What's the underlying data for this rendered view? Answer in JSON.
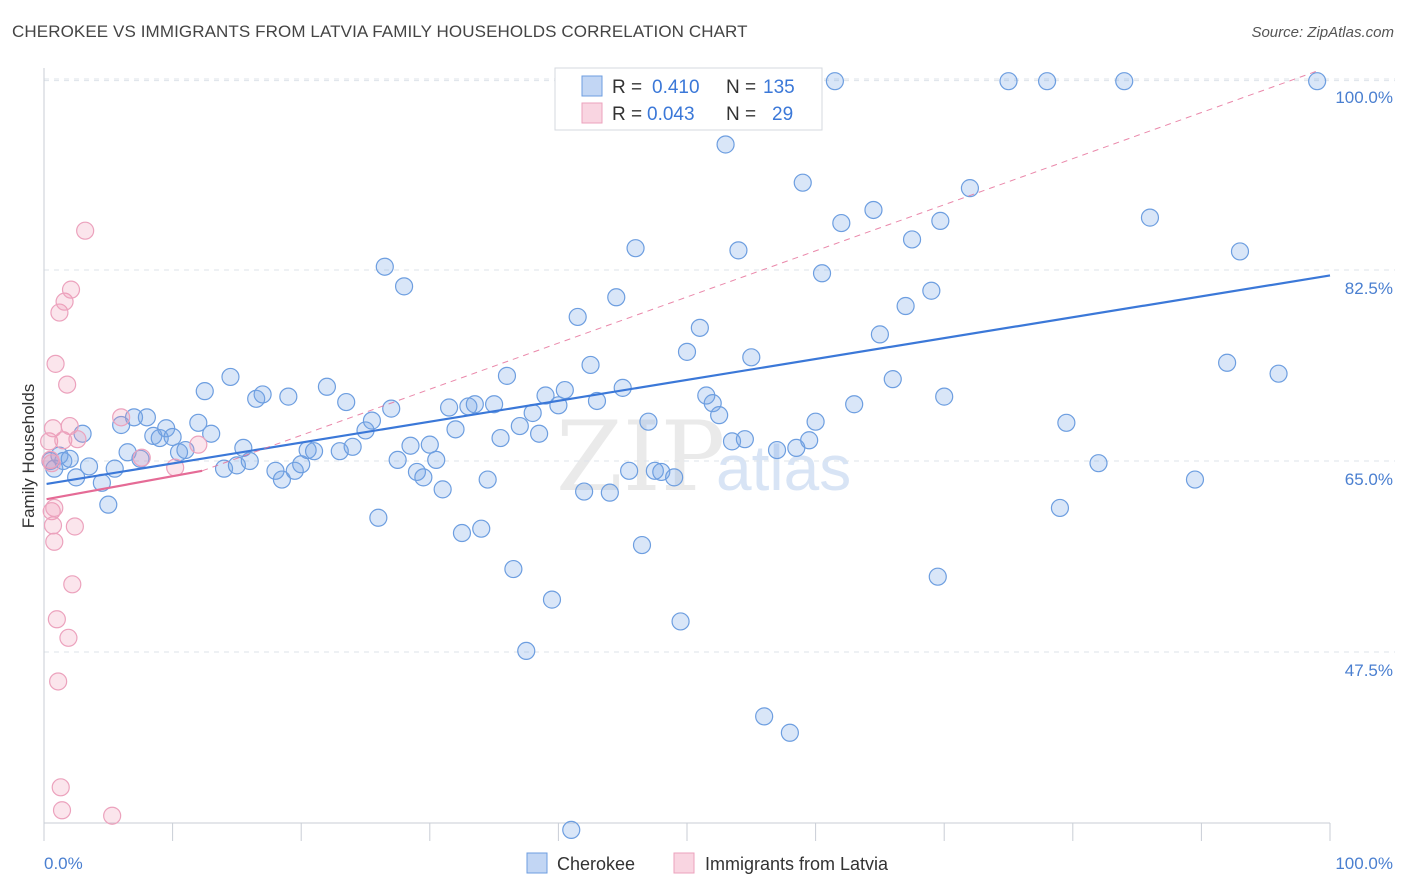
{
  "title": "CHEROKEE VS IMMIGRANTS FROM LATVIA FAMILY HOUSEHOLDS CORRELATION CHART",
  "source": "Source: ZipAtlas.com",
  "watermark": {
    "part1": "ZIP",
    "part2": "atlas"
  },
  "colors": {
    "blue": "#3b78d8",
    "blue_fill": "rgba(120,165,230,0.28)",
    "blue_stroke": "#6d9ee0",
    "pink": "#e56b96",
    "pink_fill": "rgba(240,150,180,0.25)",
    "pink_stroke": "#eca2bd",
    "grid": "#dde3ea",
    "axis_label": "#4a7fd0"
  },
  "legend": {
    "rows": [
      {
        "r_label": "R =",
        "r_value": "0.410",
        "n_label": "N =",
        "n_value": "135"
      },
      {
        "r_label": "R =",
        "r_value": "0.043",
        "n_label": "N =",
        "n_value": "29"
      }
    ]
  },
  "chart_data": {
    "type": "scatter",
    "title": "CHEROKEE VS IMMIGRANTS FROM LATVIA FAMILY HOUSEHOLDS CORRELATION CHART",
    "xlabel": "",
    "ylabel": "Family Households",
    "xlim": [
      0,
      100
    ],
    "ylim": [
      30,
      101.5
    ],
    "x_tick_labels": [
      "0.0%",
      "100.0%"
    ],
    "y_ticks": [
      47.5,
      65.0,
      82.5,
      100.0
    ],
    "y_tick_labels": [
      "47.5%",
      "65.0%",
      "82.5%",
      "100.0%"
    ],
    "series": [
      {
        "name": "Cherokee",
        "color": "#3b78d8",
        "trend": {
          "x0": 0.2,
          "y0": 62.9,
          "x1": 100,
          "y1": 82.0
        },
        "points": [
          [
            0.5,
            65
          ],
          [
            0.8,
            64.3
          ],
          [
            1.2,
            65.5
          ],
          [
            1.5,
            65
          ],
          [
            2,
            65.2
          ],
          [
            2.5,
            63.5
          ],
          [
            3,
            67.5
          ],
          [
            3.5,
            64.5
          ],
          [
            4.5,
            63
          ],
          [
            5,
            61
          ],
          [
            5.5,
            64.3
          ],
          [
            6,
            68.3
          ],
          [
            6.5,
            65.8
          ],
          [
            7,
            69
          ],
          [
            7.5,
            65.2
          ],
          [
            8,
            69
          ],
          [
            8.5,
            67.3
          ],
          [
            9,
            67.1
          ],
          [
            9.5,
            68
          ],
          [
            10,
            67.2
          ],
          [
            10.5,
            65.8
          ],
          [
            11,
            66
          ],
          [
            12,
            68.5
          ],
          [
            12.5,
            71.4
          ],
          [
            13,
            67.5
          ],
          [
            14,
            64.3
          ],
          [
            14.5,
            72.7
          ],
          [
            15,
            64.6
          ],
          [
            15.5,
            66.2
          ],
          [
            16,
            65
          ],
          [
            16.5,
            70.7
          ],
          [
            17,
            71.1
          ],
          [
            18,
            64.1
          ],
          [
            18.5,
            63.3
          ],
          [
            19,
            70.9
          ],
          [
            19.5,
            64.1
          ],
          [
            20,
            64.7
          ],
          [
            20.5,
            66
          ],
          [
            21,
            65.9
          ],
          [
            22,
            71.8
          ],
          [
            23,
            65.9
          ],
          [
            23.5,
            70.4
          ],
          [
            24,
            66.3
          ],
          [
            25,
            67.8
          ],
          [
            25.5,
            68.7
          ],
          [
            26,
            59.8
          ],
          [
            26.5,
            82.8
          ],
          [
            27,
            69.8
          ],
          [
            27.5,
            65.1
          ],
          [
            28,
            81
          ],
          [
            28.5,
            66.4
          ],
          [
            29,
            64
          ],
          [
            29.5,
            63.5
          ],
          [
            30,
            66.5
          ],
          [
            30.5,
            65.1
          ],
          [
            31,
            62.4
          ],
          [
            31.5,
            69.9
          ],
          [
            32,
            67.9
          ],
          [
            32.5,
            58.4
          ],
          [
            33,
            70
          ],
          [
            33.5,
            70.2
          ],
          [
            34,
            58.8
          ],
          [
            34.5,
            63.3
          ],
          [
            35,
            70.2
          ],
          [
            35.5,
            67.1
          ],
          [
            36,
            72.8
          ],
          [
            36.5,
            55.1
          ],
          [
            37,
            68.2
          ],
          [
            37.5,
            47.6
          ],
          [
            38,
            69.4
          ],
          [
            38.5,
            67.5
          ],
          [
            39,
            71
          ],
          [
            39.5,
            52.3
          ],
          [
            40,
            70.1
          ],
          [
            40.5,
            71.5
          ],
          [
            41,
            31.2
          ],
          [
            41.5,
            78.2
          ],
          [
            42,
            62.2
          ],
          [
            42.5,
            73.8
          ],
          [
            43,
            70.5
          ],
          [
            44,
            62.1
          ],
          [
            44.5,
            80
          ],
          [
            45,
            71.7
          ],
          [
            45.5,
            64.1
          ],
          [
            46,
            84.5
          ],
          [
            46.5,
            57.3
          ],
          [
            47,
            68.6
          ],
          [
            47.5,
            64.1
          ],
          [
            48,
            64
          ],
          [
            49,
            63.5
          ],
          [
            49.5,
            50.3
          ],
          [
            50,
            75
          ],
          [
            51,
            77.2
          ],
          [
            51.5,
            71
          ],
          [
            52,
            70.3
          ],
          [
            52.5,
            69.2
          ],
          [
            53,
            94
          ],
          [
            53.5,
            66.8
          ],
          [
            54,
            84.3
          ],
          [
            54.5,
            67
          ],
          [
            55,
            74.5
          ],
          [
            55.5,
            99.8
          ],
          [
            56,
            41.6
          ],
          [
            57,
            66
          ],
          [
            58,
            40.1
          ],
          [
            58.5,
            66.2
          ],
          [
            59,
            90.5
          ],
          [
            59.5,
            66.9
          ],
          [
            60,
            68.6
          ],
          [
            60.5,
            82.2
          ],
          [
            61.5,
            99.8
          ],
          [
            62,
            86.8
          ],
          [
            63,
            70.2
          ],
          [
            64.5,
            88
          ],
          [
            65,
            76.6
          ],
          [
            66,
            72.5
          ],
          [
            67,
            79.2
          ],
          [
            67.5,
            85.3
          ],
          [
            69,
            80.6
          ],
          [
            69.5,
            54.4
          ],
          [
            69.7,
            87
          ],
          [
            70,
            70.9
          ],
          [
            72,
            90
          ],
          [
            75,
            99.8
          ],
          [
            78,
            99.8
          ],
          [
            79,
            60.7
          ],
          [
            79.5,
            68.5
          ],
          [
            82,
            64.8
          ],
          [
            84,
            99.8
          ],
          [
            86,
            87.3
          ],
          [
            89.5,
            63.3
          ],
          [
            92,
            74
          ],
          [
            93,
            84.2
          ],
          [
            96,
            73
          ],
          [
            99,
            99.8
          ]
        ]
      },
      {
        "name": "Immigrants from Latvia",
        "color": "#e56b96",
        "trend": {
          "x0": 0.2,
          "y0": 61.5,
          "x1": 12.3,
          "y1": 64.1
        },
        "points": [
          [
            0.4,
            66.8
          ],
          [
            0.5,
            65.1
          ],
          [
            0.6,
            64.8
          ],
          [
            0.6,
            60.4
          ],
          [
            0.7,
            68
          ],
          [
            0.7,
            59.1
          ],
          [
            0.8,
            60.7
          ],
          [
            0.8,
            57.6
          ],
          [
            0.9,
            73.9
          ],
          [
            1,
            50.5
          ],
          [
            1.1,
            44.8
          ],
          [
            1.2,
            78.6
          ],
          [
            1.3,
            35.1
          ],
          [
            1.4,
            33
          ],
          [
            1.5,
            66.9
          ],
          [
            1.6,
            79.6
          ],
          [
            1.8,
            72
          ],
          [
            1.9,
            48.8
          ],
          [
            2,
            68.2
          ],
          [
            2.1,
            80.7
          ],
          [
            2.2,
            53.7
          ],
          [
            2.4,
            59
          ],
          [
            2.6,
            67
          ],
          [
            3.2,
            86.1
          ],
          [
            5.3,
            32.5
          ],
          [
            6,
            69
          ],
          [
            7.6,
            65.3
          ],
          [
            10.2,
            64.4
          ],
          [
            12,
            66.5
          ]
        ]
      }
    ]
  },
  "bottom_legend": {
    "items": [
      "Cherokee",
      "Immigrants from Latvia"
    ]
  }
}
